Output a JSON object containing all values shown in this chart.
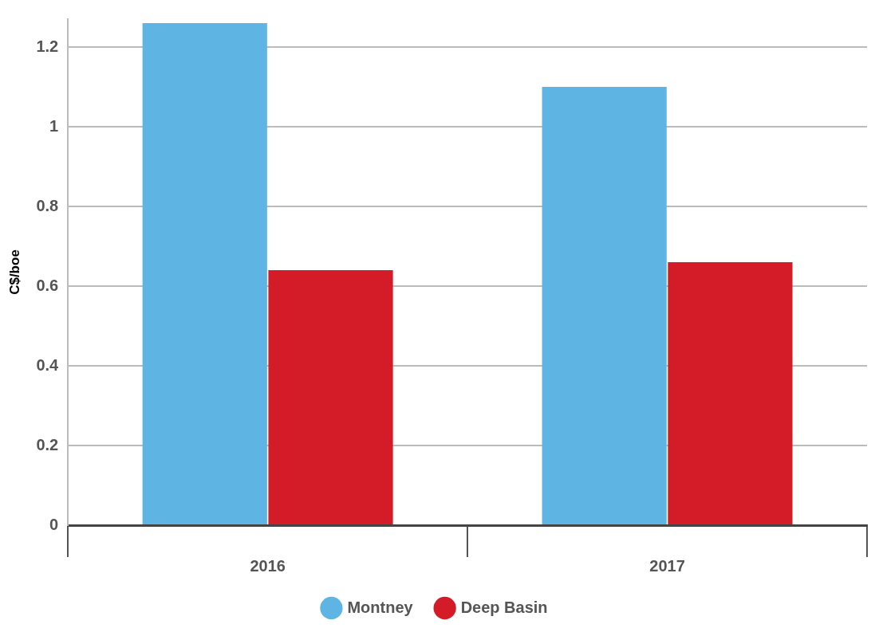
{
  "chart_data": {
    "type": "bar",
    "ylabel": "C$/boe",
    "categories": [
      "2016",
      "2017"
    ],
    "series": [
      {
        "name": "Montney",
        "color": "#5eb5e4",
        "values": [
          1.26,
          1.1
        ]
      },
      {
        "name": "Deep Basin",
        "color": "#d41c28",
        "values": [
          0.64,
          0.66
        ]
      }
    ],
    "ylim": [
      0,
      1.27
    ],
    "yticks": [
      0,
      0.2,
      0.4,
      0.6,
      0.8,
      1,
      1.2
    ],
    "grid": "y",
    "legend": "bottom"
  }
}
